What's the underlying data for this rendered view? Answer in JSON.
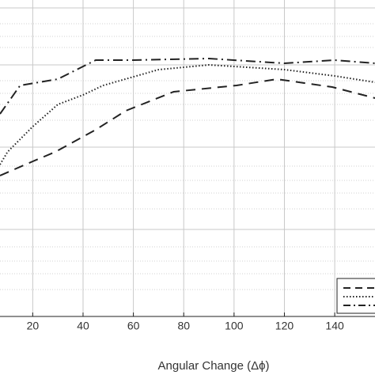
{
  "chart_data": {
    "type": "line",
    "xlabel": "Angular Change (Δϕ)",
    "xlim": [
      7,
      156
    ],
    "ylim": [
      0,
      1
    ],
    "xticks": [
      20,
      40,
      60,
      80,
      100,
      120,
      140
    ],
    "grid": true,
    "series": [
      {
        "color": "#222222",
        "style": "dashdot",
        "x": [
          7,
          15,
          30,
          45,
          60,
          90,
          120,
          140,
          156
        ],
        "values": [
          0.64,
          0.73,
          0.75,
          0.81,
          0.81,
          0.815,
          0.8,
          0.81,
          0.8
        ]
      },
      {
        "color": "#222222",
        "style": "dotted",
        "x": [
          7,
          10,
          20,
          30,
          40,
          48,
          70,
          90,
          100,
          120,
          140,
          156
        ],
        "values": [
          0.48,
          0.52,
          0.6,
          0.67,
          0.7,
          0.73,
          0.78,
          0.795,
          0.79,
          0.78,
          0.76,
          0.74
        ]
      },
      {
        "color": "#222222",
        "style": "dashed",
        "x": [
          7,
          20,
          29,
          45,
          57,
          76,
          101,
          117,
          139,
          156
        ],
        "values": [
          0.445,
          0.49,
          0.52,
          0.59,
          0.65,
          0.71,
          0.73,
          0.75,
          0.725,
          0.69
        ]
      }
    ]
  }
}
